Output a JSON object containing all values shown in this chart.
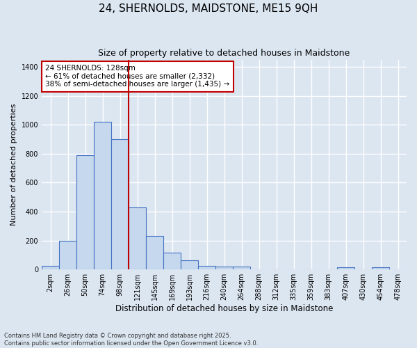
{
  "title1": "24, SHERNOLDS, MAIDSTONE, ME15 9QH",
  "title2": "Size of property relative to detached houses in Maidstone",
  "xlabel": "Distribution of detached houses by size in Maidstone",
  "ylabel": "Number of detached properties",
  "categories": [
    "2sqm",
    "26sqm",
    "50sqm",
    "74sqm",
    "98sqm",
    "121sqm",
    "145sqm",
    "169sqm",
    "193sqm",
    "216sqm",
    "240sqm",
    "264sqm",
    "288sqm",
    "312sqm",
    "335sqm",
    "359sqm",
    "383sqm",
    "407sqm",
    "430sqm",
    "454sqm",
    "478sqm"
  ],
  "values": [
    25,
    200,
    790,
    1020,
    900,
    430,
    230,
    115,
    65,
    25,
    20,
    20,
    0,
    0,
    0,
    0,
    0,
    15,
    0,
    15,
    0
  ],
  "bar_color": "#c5d8ed",
  "bar_edge_color": "#4472c4",
  "bg_color": "#dce6f1",
  "grid_color": "#ffffff",
  "vline_x": 4.5,
  "vline_color": "#c00000",
  "annotation_text": "24 SHERNOLDS: 128sqm\n← 61% of detached houses are smaller (2,332)\n38% of semi-detached houses are larger (1,435) →",
  "annotation_box_color": "#ffffff",
  "annotation_box_edge": "#c00000",
  "ylim": [
    0,
    1450
  ],
  "yticks": [
    0,
    200,
    400,
    600,
    800,
    1000,
    1200,
    1400
  ],
  "footnote": "Contains HM Land Registry data © Crown copyright and database right 2025.\nContains public sector information licensed under the Open Government Licence v3.0.",
  "title_fontsize": 11,
  "subtitle_fontsize": 9,
  "tick_fontsize": 7,
  "ylabel_fontsize": 8,
  "xlabel_fontsize": 8.5
}
